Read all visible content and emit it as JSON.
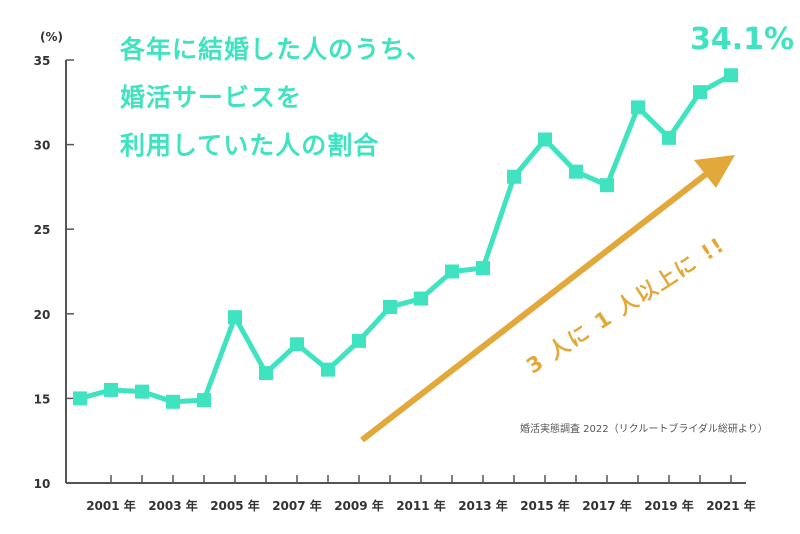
{
  "title_lines": [
    "各年に結婚した人のうち、",
    "婚活サービスを",
    "利用していた人の割合"
  ],
  "peak_label": "34.1%",
  "arrow_label": "3 人に 1 人以上に !!",
  "source": "婚活実態調査 2022（リクルートブライダル総研より）",
  "colors": {
    "line": "#3fe3c0",
    "arrow": "#e2a83a",
    "axis": "#555555"
  },
  "chart_data": {
    "type": "line",
    "ylabel": "(%)",
    "ylim": [
      10,
      35
    ],
    "yticks": [
      10,
      15,
      20,
      25,
      30,
      35
    ],
    "x": [
      2000,
      2001,
      2002,
      2003,
      2004,
      2005,
      2006,
      2007,
      2008,
      2009,
      2010,
      2011,
      2012,
      2013,
      2014,
      2015,
      2016,
      2017,
      2018,
      2019,
      2020,
      2021
    ],
    "xtick_labels": [
      {
        "x": 2001,
        "label": "2001 年"
      },
      {
        "x": 2003,
        "label": "2003 年"
      },
      {
        "x": 2005,
        "label": "2005 年"
      },
      {
        "x": 2007,
        "label": "2007 年"
      },
      {
        "x": 2009,
        "label": "2009 年"
      },
      {
        "x": 2011,
        "label": "2011 年"
      },
      {
        "x": 2013,
        "label": "2013 年"
      },
      {
        "x": 2015,
        "label": "2015 年"
      },
      {
        "x": 2017,
        "label": "2017 年"
      },
      {
        "x": 2019,
        "label": "2019 年"
      },
      {
        "x": 2021,
        "label": "2021 年"
      }
    ],
    "series": [
      {
        "values": [
          15.0,
          15.5,
          15.4,
          14.8,
          14.9,
          19.8,
          16.5,
          18.2,
          16.7,
          18.4,
          20.4,
          20.9,
          22.5,
          22.7,
          28.1,
          30.3,
          28.4,
          27.6,
          32.2,
          30.4,
          33.1,
          34.1
        ]
      }
    ],
    "grid": false
  }
}
